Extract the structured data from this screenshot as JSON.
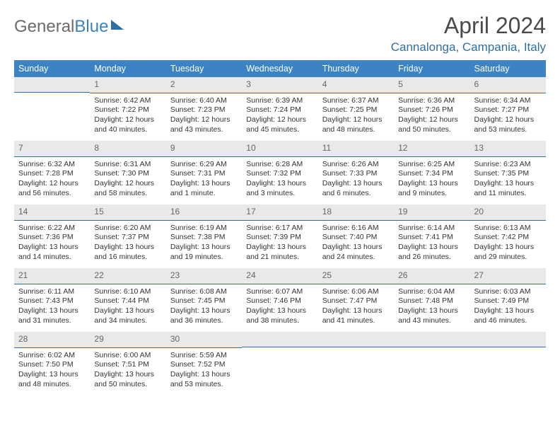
{
  "brand": {
    "part1": "General",
    "part2": "Blue"
  },
  "title": "April 2024",
  "location": "Cannalonga, Campania, Italy",
  "weekdays": [
    "Sunday",
    "Monday",
    "Tuesday",
    "Wednesday",
    "Thursday",
    "Friday",
    "Saturday"
  ],
  "colors": {
    "header_bg": "#3b83c4",
    "header_text": "#ffffff",
    "daynum_bg": "#e9e9e9",
    "daynum_border": "#2f6fa7",
    "logo_gray": "#6b6b6b",
    "logo_blue": "#3b83bd"
  },
  "grid": [
    [
      {
        "day": "",
        "lines": []
      },
      {
        "day": "1",
        "lines": [
          "Sunrise: 6:42 AM",
          "Sunset: 7:22 PM",
          "Daylight: 12 hours and 40 minutes."
        ]
      },
      {
        "day": "2",
        "lines": [
          "Sunrise: 6:40 AM",
          "Sunset: 7:23 PM",
          "Daylight: 12 hours and 43 minutes."
        ]
      },
      {
        "day": "3",
        "lines": [
          "Sunrise: 6:39 AM",
          "Sunset: 7:24 PM",
          "Daylight: 12 hours and 45 minutes."
        ]
      },
      {
        "day": "4",
        "lines": [
          "Sunrise: 6:37 AM",
          "Sunset: 7:25 PM",
          "Daylight: 12 hours and 48 minutes."
        ]
      },
      {
        "day": "5",
        "lines": [
          "Sunrise: 6:36 AM",
          "Sunset: 7:26 PM",
          "Daylight: 12 hours and 50 minutes."
        ]
      },
      {
        "day": "6",
        "lines": [
          "Sunrise: 6:34 AM",
          "Sunset: 7:27 PM",
          "Daylight: 12 hours and 53 minutes."
        ]
      }
    ],
    [
      {
        "day": "7",
        "lines": [
          "Sunrise: 6:32 AM",
          "Sunset: 7:28 PM",
          "Daylight: 12 hours and 56 minutes."
        ]
      },
      {
        "day": "8",
        "lines": [
          "Sunrise: 6:31 AM",
          "Sunset: 7:30 PM",
          "Daylight: 12 hours and 58 minutes."
        ]
      },
      {
        "day": "9",
        "lines": [
          "Sunrise: 6:29 AM",
          "Sunset: 7:31 PM",
          "Daylight: 13 hours and 1 minute."
        ]
      },
      {
        "day": "10",
        "lines": [
          "Sunrise: 6:28 AM",
          "Sunset: 7:32 PM",
          "Daylight: 13 hours and 3 minutes."
        ]
      },
      {
        "day": "11",
        "lines": [
          "Sunrise: 6:26 AM",
          "Sunset: 7:33 PM",
          "Daylight: 13 hours and 6 minutes."
        ]
      },
      {
        "day": "12",
        "lines": [
          "Sunrise: 6:25 AM",
          "Sunset: 7:34 PM",
          "Daylight: 13 hours and 9 minutes."
        ]
      },
      {
        "day": "13",
        "lines": [
          "Sunrise: 6:23 AM",
          "Sunset: 7:35 PM",
          "Daylight: 13 hours and 11 minutes."
        ]
      }
    ],
    [
      {
        "day": "14",
        "lines": [
          "Sunrise: 6:22 AM",
          "Sunset: 7:36 PM",
          "Daylight: 13 hours and 14 minutes."
        ]
      },
      {
        "day": "15",
        "lines": [
          "Sunrise: 6:20 AM",
          "Sunset: 7:37 PM",
          "Daylight: 13 hours and 16 minutes."
        ]
      },
      {
        "day": "16",
        "lines": [
          "Sunrise: 6:19 AM",
          "Sunset: 7:38 PM",
          "Daylight: 13 hours and 19 minutes."
        ]
      },
      {
        "day": "17",
        "lines": [
          "Sunrise: 6:17 AM",
          "Sunset: 7:39 PM",
          "Daylight: 13 hours and 21 minutes."
        ]
      },
      {
        "day": "18",
        "lines": [
          "Sunrise: 6:16 AM",
          "Sunset: 7:40 PM",
          "Daylight: 13 hours and 24 minutes."
        ]
      },
      {
        "day": "19",
        "lines": [
          "Sunrise: 6:14 AM",
          "Sunset: 7:41 PM",
          "Daylight: 13 hours and 26 minutes."
        ]
      },
      {
        "day": "20",
        "lines": [
          "Sunrise: 6:13 AM",
          "Sunset: 7:42 PM",
          "Daylight: 13 hours and 29 minutes."
        ]
      }
    ],
    [
      {
        "day": "21",
        "lines": [
          "Sunrise: 6:11 AM",
          "Sunset: 7:43 PM",
          "Daylight: 13 hours and 31 minutes."
        ]
      },
      {
        "day": "22",
        "lines": [
          "Sunrise: 6:10 AM",
          "Sunset: 7:44 PM",
          "Daylight: 13 hours and 34 minutes."
        ]
      },
      {
        "day": "23",
        "lines": [
          "Sunrise: 6:08 AM",
          "Sunset: 7:45 PM",
          "Daylight: 13 hours and 36 minutes."
        ]
      },
      {
        "day": "24",
        "lines": [
          "Sunrise: 6:07 AM",
          "Sunset: 7:46 PM",
          "Daylight: 13 hours and 38 minutes."
        ]
      },
      {
        "day": "25",
        "lines": [
          "Sunrise: 6:06 AM",
          "Sunset: 7:47 PM",
          "Daylight: 13 hours and 41 minutes."
        ]
      },
      {
        "day": "26",
        "lines": [
          "Sunrise: 6:04 AM",
          "Sunset: 7:48 PM",
          "Daylight: 13 hours and 43 minutes."
        ]
      },
      {
        "day": "27",
        "lines": [
          "Sunrise: 6:03 AM",
          "Sunset: 7:49 PM",
          "Daylight: 13 hours and 46 minutes."
        ]
      }
    ],
    [
      {
        "day": "28",
        "lines": [
          "Sunrise: 6:02 AM",
          "Sunset: 7:50 PM",
          "Daylight: 13 hours and 48 minutes."
        ]
      },
      {
        "day": "29",
        "lines": [
          "Sunrise: 6:00 AM",
          "Sunset: 7:51 PM",
          "Daylight: 13 hours and 50 minutes."
        ]
      },
      {
        "day": "30",
        "lines": [
          "Sunrise: 5:59 AM",
          "Sunset: 7:52 PM",
          "Daylight: 13 hours and 53 minutes."
        ]
      },
      {
        "day": "",
        "lines": []
      },
      {
        "day": "",
        "lines": []
      },
      {
        "day": "",
        "lines": []
      },
      {
        "day": "",
        "lines": []
      }
    ]
  ]
}
